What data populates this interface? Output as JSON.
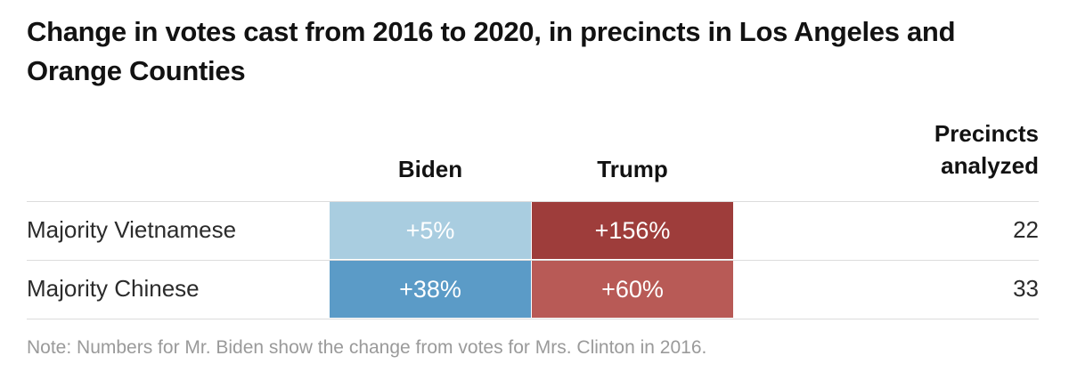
{
  "chart_data": {
    "type": "table",
    "title": "Change in votes cast from 2016 to 2020, in precincts in Los Angeles and Orange Counties",
    "columns": {
      "biden": "Biden",
      "trump": "Trump",
      "precincts": [
        "Precincts",
        "analyzed"
      ]
    },
    "rows": [
      {
        "label": "Majority Vietnamese",
        "biden": "+5%",
        "trump": "+156%",
        "precincts": "22"
      },
      {
        "label": "Majority Chinese",
        "biden": "+38%",
        "trump": "+60%",
        "precincts": "33"
      }
    ],
    "note": "Note: Numbers for Mr. Biden show the change from votes for Mrs. Clinton in 2016."
  },
  "colors": {
    "biden_light": "#a9cde0",
    "biden_dark": "#5b9bc7",
    "trump_dark": "#9e3d3b",
    "trump_light": "#b85a56"
  }
}
